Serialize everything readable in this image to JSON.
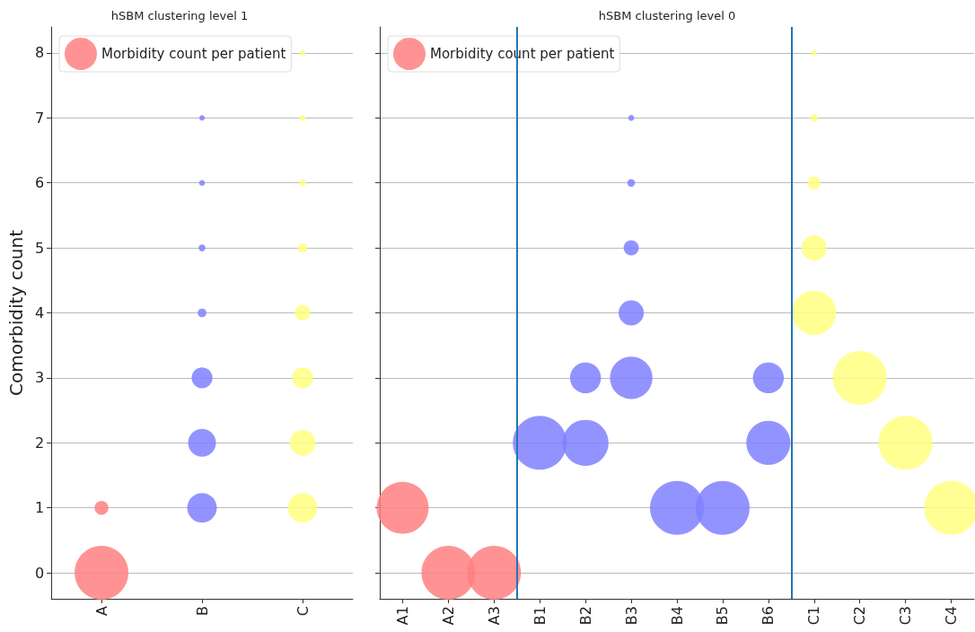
{
  "chart_data": [
    {
      "type": "bubble",
      "title": "hSBM clustering level 1",
      "ylabel": "Comorbidity count",
      "categories": [
        "A",
        "B",
        "C"
      ],
      "ylim": [
        -0.4,
        8.4
      ],
      "yticks": [
        0,
        1,
        2,
        3,
        4,
        5,
        6,
        7,
        8
      ],
      "grid": "y",
      "legend": "top left",
      "marker": "circle",
      "series": [
        {
          "name": "Morbidity count per patient",
          "color": "#ff8080",
          "x": [
            "A",
            "A"
          ],
          "values": [
            0,
            1
          ],
          "sizes": [
            1,
            0.067
          ]
        },
        {
          "color": "#8080ff",
          "x": [
            "B",
            "B",
            "B",
            "B",
            "B",
            "B",
            "B"
          ],
          "values": [
            1,
            2,
            3,
            4,
            5,
            6,
            7
          ],
          "sizes": [
            0.3,
            0.27,
            0.15,
            0.026,
            0.016,
            0.012,
            0.01
          ]
        },
        {
          "color": "#ffff80",
          "x": [
            "C",
            "C",
            "C",
            "C",
            "C",
            "C",
            "C",
            "C"
          ],
          "values": [
            1,
            2,
            3,
            4,
            5,
            6,
            7,
            8
          ],
          "sizes": [
            0.3,
            0.23,
            0.15,
            0.084,
            0.031,
            0.016,
            0.012,
            0.01
          ]
        }
      ]
    },
    {
      "type": "bubble",
      "title": "hSBM clustering level 0",
      "categories": [
        "A1",
        "A2",
        "A3",
        "B1",
        "B2",
        "B3",
        "B4",
        "B5",
        "B6",
        "C1",
        "C2",
        "C3",
        "C4"
      ],
      "ylim": [
        -0.4,
        8.4
      ],
      "yticks": [
        0,
        1,
        2,
        3,
        4,
        5,
        6,
        7,
        8
      ],
      "tick_labels": "x",
      "grid": "y",
      "legend": "top left",
      "marker": "circle",
      "series": [
        {
          "name": "Morbidity count per patient",
          "color": "#ff8080",
          "x": [
            "A1",
            "A2",
            "A3"
          ],
          "values": [
            1,
            0,
            0
          ],
          "sizes": [
            0.93,
            1,
            1
          ]
        },
        {
          "color": "#8080ff",
          "x": [
            "B1",
            "B2",
            "B2",
            "B3",
            "B3",
            "B3",
            "B3",
            "B3",
            "B4",
            "B5",
            "B6",
            "B6"
          ],
          "values": [
            2,
            2,
            3,
            3,
            4,
            5,
            6,
            7,
            1,
            1,
            2,
            3
          ],
          "sizes": [
            1,
            0.73,
            0.33,
            0.62,
            0.22,
            0.08,
            0.02,
            0.012,
            1,
            1,
            0.67,
            0.33
          ]
        },
        {
          "color": "#ffff80",
          "x": [
            "C1",
            "C1",
            "C1",
            "C1",
            "C1",
            "C2",
            "C3",
            "C4"
          ],
          "values": [
            4,
            5,
            6,
            7,
            8,
            3,
            2,
            1
          ],
          "sizes": [
            0.67,
            0.22,
            0.06,
            0.02,
            0.012,
            1,
            1,
            1
          ]
        }
      ]
    }
  ]
}
